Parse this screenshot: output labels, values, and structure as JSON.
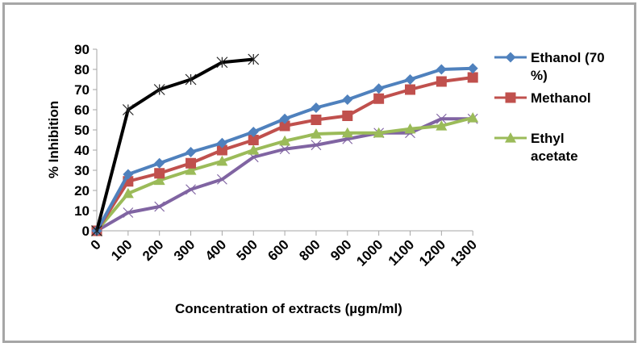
{
  "chart_data": {
    "type": "line",
    "title": "",
    "xlabel": "Concentration  of extracts  (µgm/ml)",
    "ylabel": "% Inhibition",
    "categories": [
      "0",
      "100",
      "200",
      "300",
      "400",
      "500",
      "600",
      "800",
      "900",
      "1000",
      "1100",
      "1200",
      "1300"
    ],
    "ylim": [
      0,
      90
    ],
    "yticks": [
      "0",
      "10",
      "20",
      "30",
      "40",
      "50",
      "60",
      "70",
      "80",
      "90"
    ],
    "grid": false,
    "legend_position": "right",
    "series": [
      {
        "name": "Ethanol (70 %)",
        "legend_lines": [
          "Ethanol (70",
          "%)"
        ],
        "color": "#4F81BD",
        "marker": "diamond",
        "in_legend": true,
        "values": [
          0,
          28,
          33.5,
          39,
          43.5,
          49,
          55.5,
          61,
          65,
          70.5,
          75,
          80,
          80.5
        ]
      },
      {
        "name": "Methanol",
        "legend_lines": [
          "Methanol"
        ],
        "color": "#C0504D",
        "marker": "square",
        "in_legend": true,
        "values": [
          0,
          24.5,
          28.5,
          33.5,
          40,
          45,
          52,
          55,
          57,
          65.5,
          70,
          74,
          76
        ]
      },
      {
        "name": "Ethyl acetate",
        "legend_lines": [
          "Ethyl",
          "acetate"
        ],
        "color": "#9BBB59",
        "marker": "triangle",
        "in_legend": true,
        "values": [
          0,
          18.5,
          25,
          30,
          34.5,
          40,
          44.5,
          48,
          48.5,
          48.5,
          50.5,
          52,
          56
        ]
      },
      {
        "name": "Series 4",
        "color": "#8064A2",
        "marker": "x",
        "in_legend": false,
        "values": [
          0,
          9,
          12,
          20.5,
          25.5,
          36.5,
          40.5,
          42.5,
          45.5,
          48.5,
          48.5,
          55.5,
          55.5
        ]
      },
      {
        "name": "Series 5",
        "color": "#000000",
        "marker": "star",
        "in_legend": false,
        "values": [
          0,
          60,
          70,
          75,
          83.5,
          85
        ]
      }
    ]
  }
}
